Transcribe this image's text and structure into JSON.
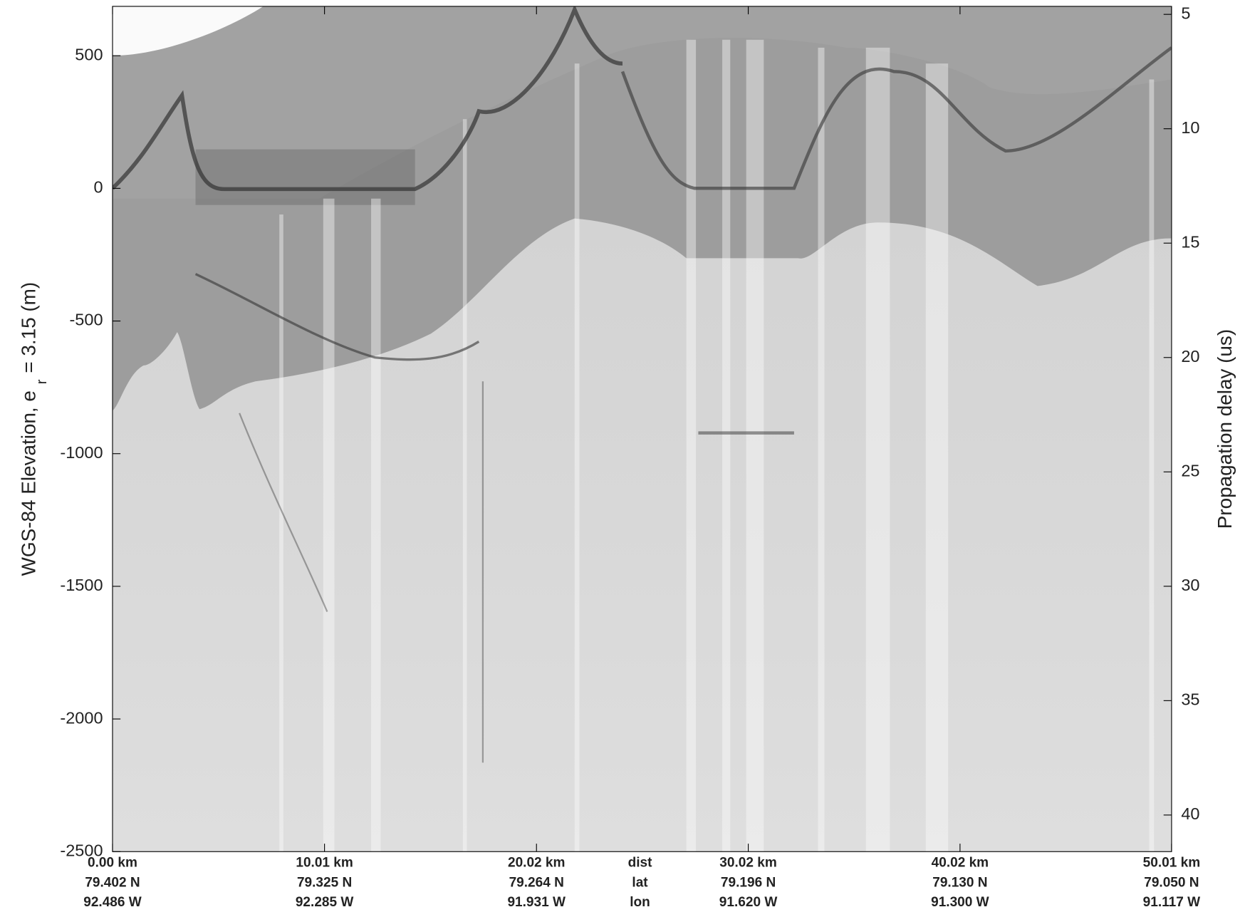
{
  "chart_data": {
    "type": "radargram",
    "ylabel": {
      "main": "WGS-84 Elevation, e",
      "sub": "r",
      "rest": "= 3.15 (m)"
    },
    "y2label": "Propagation delay (us)",
    "xlim": [
      0,
      50.01
    ],
    "xticks": [
      {
        "value": 0,
        "label": "0.00 km"
      },
      {
        "value": 10.01,
        "label": "10.01 km"
      },
      {
        "value": 20.02,
        "label": "20.02 km"
      },
      {
        "value": 30.02,
        "label": "30.02 km"
      },
      {
        "value": 40.02,
        "label": "40.02 km"
      },
      {
        "value": 50.01,
        "label": "50.01 km"
      }
    ],
    "lat_labels": [
      "79.402 N",
      "79.325 N",
      "79.264 N",
      "79.196 N",
      "79.130 N",
      "79.050 N"
    ],
    "lon_labels": [
      "92.486 W",
      "92.285 W",
      "91.931 W",
      "91.620 W",
      "91.300 W",
      "91.117 W"
    ],
    "row_titles": [
      "dist",
      "lat",
      "lon"
    ],
    "ylim": [
      -2500,
      686
    ],
    "yticks": [
      500,
      0,
      -500,
      -1000,
      -1500,
      -2000,
      -2500
    ],
    "y2lim": [
      41.6,
      4.65
    ],
    "y2ticks": [
      5,
      10,
      15,
      20,
      25,
      30,
      35,
      40
    ]
  }
}
